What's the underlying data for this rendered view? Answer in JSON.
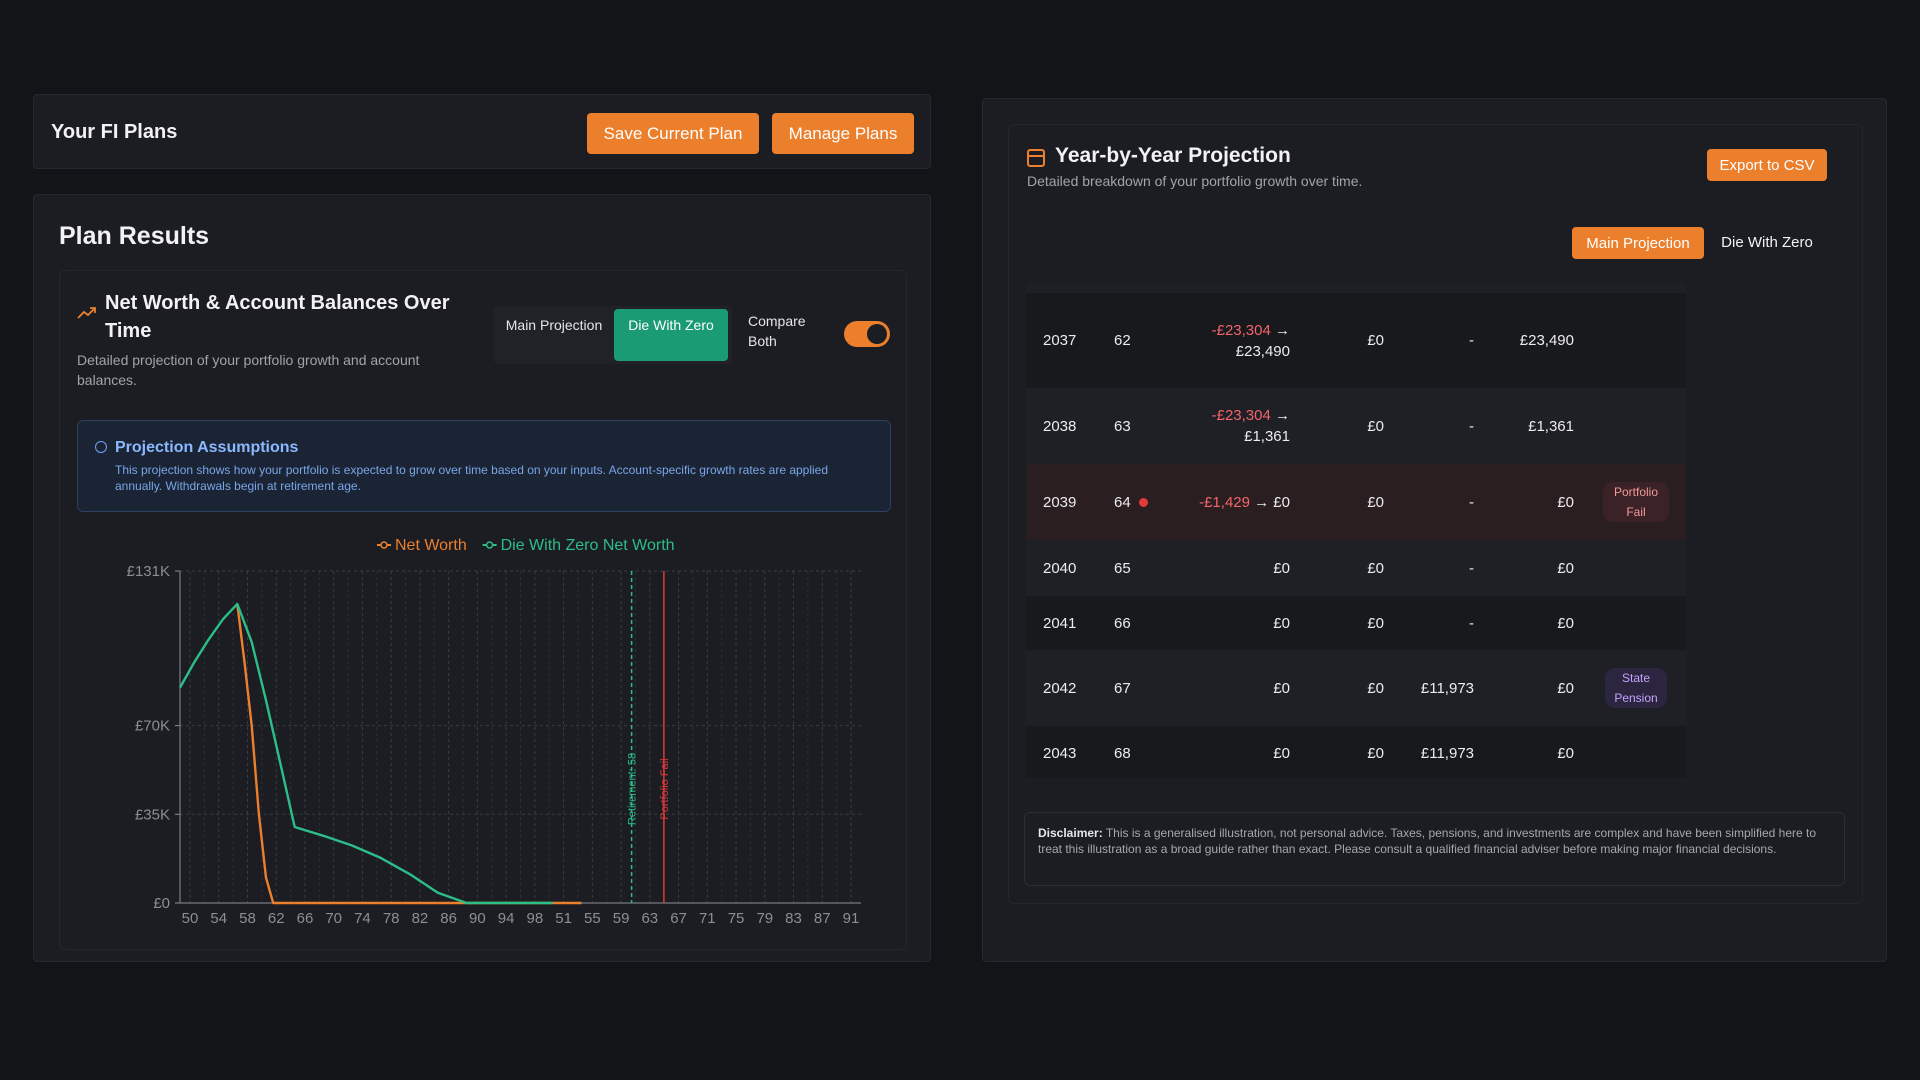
{
  "plans_bar": {
    "title": "Your FI Plans",
    "save_label": "Save Current Plan",
    "manage_label": "Manage Plans"
  },
  "results": {
    "title": "Plan Results",
    "chart_title": "Net Worth & Account Balances Over Time",
    "chart_desc": "Detailed projection of your portfolio growth and account balances.",
    "toggle": {
      "main": "Main Projection",
      "dwz": "Die With Zero",
      "selected": "dwz"
    },
    "compare_label": "Compare Both",
    "compare_on": true,
    "assumptions": {
      "title": "Projection Assumptions",
      "text": "This projection shows how your portfolio is expected to grow over time based on your inputs. Account-specific growth rates are applied annually. Withdrawals begin at retirement age."
    }
  },
  "chart_data": {
    "type": "line",
    "title": "",
    "xlabel": "",
    "ylabel": "",
    "x_tick_labels": [
      "50",
      "54",
      "58",
      "62",
      "66",
      "70",
      "74",
      "78",
      "82",
      "86",
      "90",
      "94",
      "98",
      "51",
      "55",
      "59",
      "63",
      "67",
      "71",
      "75",
      "79",
      "83",
      "87",
      "91"
    ],
    "y_ticks": [
      {
        "value": 0,
        "label": "£0"
      },
      {
        "value": 35,
        "label": "£35K"
      },
      {
        "value": 70,
        "label": "£70K"
      },
      {
        "value": 131,
        "label": "£131K"
      }
    ],
    "ylim": [
      0,
      131
    ],
    "xlim": [
      50,
      145
    ],
    "grid": true,
    "legend": "top-center",
    "series": [
      {
        "name": "Net Worth",
        "color": "#ec7f2c",
        "points": [
          [
            58,
            118
          ],
          [
            59,
            95
          ],
          [
            60,
            70
          ],
          [
            61,
            35
          ],
          [
            62,
            10
          ],
          [
            63,
            0
          ],
          [
            66,
            0
          ],
          [
            74,
            0
          ],
          [
            82,
            0
          ],
          [
            90,
            0
          ],
          [
            98,
            0
          ],
          [
            102,
            0
          ],
          [
            106,
            0
          ]
        ]
      },
      {
        "name": "Die With Zero Net Worth",
        "color": "#2dbd88",
        "points": [
          [
            50,
            85
          ],
          [
            52,
            95
          ],
          [
            54,
            104
          ],
          [
            56,
            112
          ],
          [
            58,
            118
          ],
          [
            60,
            103
          ],
          [
            62,
            80
          ],
          [
            64,
            55
          ],
          [
            66,
            30
          ],
          [
            70,
            26.5
          ],
          [
            74,
            22.7
          ],
          [
            78,
            17.8
          ],
          [
            82,
            11.5
          ],
          [
            86,
            4
          ],
          [
            90,
            0
          ],
          [
            94,
            0
          ],
          [
            98,
            0
          ],
          [
            102,
            0
          ]
        ]
      }
    ],
    "annotations": [
      {
        "x": 113,
        "label": "Retirement: 58",
        "color": "#2dbd88",
        "style": "dashed"
      },
      {
        "x": 117.5,
        "label": "Portfolio Fail",
        "color": "#d83a3a",
        "style": "solid"
      }
    ]
  },
  "projection": {
    "title": "Year-by-Year Projection",
    "desc": "Detailed breakdown of your portfolio growth over time.",
    "export_label": "Export to CSV",
    "tab_main": "Main Projection",
    "tab_dwz": "Die With Zero",
    "rows": [
      {
        "year": "2037",
        "age": "62",
        "chg_neg": "-£23,304",
        "chg_rest": "→ £23,490",
        "contrib": "£0",
        "pension": "-",
        "balance": "£23,490",
        "badge": "",
        "fail": false
      },
      {
        "year": "2038",
        "age": "63",
        "chg_neg": "-£23,304",
        "chg_rest": "→ £1,361",
        "contrib": "£0",
        "pension": "-",
        "balance": "£1,361",
        "badge": "",
        "fail": false
      },
      {
        "year": "2039",
        "age": "64",
        "chg_neg": "-£1,429",
        "chg_rest": "→ £0",
        "contrib": "£0",
        "pension": "-",
        "balance": "£0",
        "badge": "Portfolio Fail",
        "fail": true
      },
      {
        "year": "2040",
        "age": "65",
        "chg_neg": "",
        "chg_rest": "£0",
        "contrib": "£0",
        "pension": "-",
        "balance": "£0",
        "badge": "",
        "fail": false
      },
      {
        "year": "2041",
        "age": "66",
        "chg_neg": "",
        "chg_rest": "£0",
        "contrib": "£0",
        "pension": "-",
        "balance": "£0",
        "badge": "",
        "fail": false
      },
      {
        "year": "2042",
        "age": "67",
        "chg_neg": "",
        "chg_rest": "£0",
        "contrib": "£0",
        "pension": "£11,973",
        "balance": "£0",
        "badge": "State Pension",
        "fail": false
      },
      {
        "year": "2043",
        "age": "68",
        "chg_neg": "",
        "chg_rest": "£0",
        "contrib": "£0",
        "pension": "£11,973",
        "balance": "£0",
        "badge": "",
        "fail": false
      }
    ],
    "disclaimer_label": "Disclaimer:",
    "disclaimer_text": "This is a generalised illustration, not personal advice. Taxes, pensions, and investments are complex and have been simplified here to treat this illustration as a broad guide rather than exact. Please consult a qualified financial adviser before making major financial decisions."
  }
}
